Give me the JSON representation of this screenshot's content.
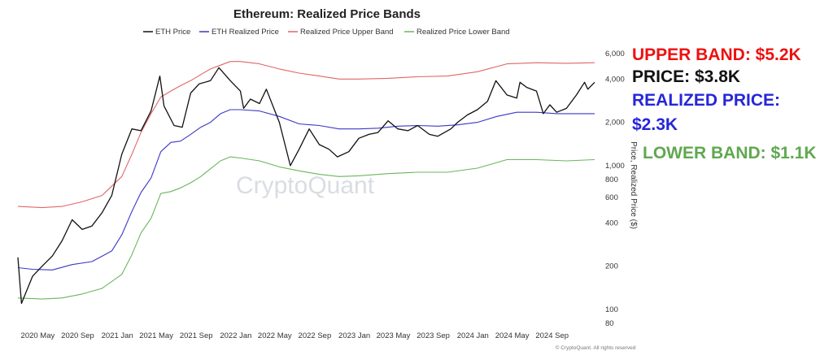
{
  "chart_data": {
    "type": "line",
    "title": "Ethereum: Realized Price Bands",
    "ylabel": "Price, Realized Price ($)",
    "yscale": "log",
    "ylim": [
      80,
      6500
    ],
    "xlim": [
      "2020-03-01",
      "2025-01-15"
    ],
    "grid": false,
    "legend_position": "top-center",
    "y_ticks": [
      {
        "v": 6000,
        "label": "6,000"
      },
      {
        "v": 4000,
        "label": "4,000"
      },
      {
        "v": 2000,
        "label": "2,000"
      },
      {
        "v": 1000,
        "label": "1,000"
      },
      {
        "v": 800,
        "label": "800"
      },
      {
        "v": 600,
        "label": "600"
      },
      {
        "v": 400,
        "label": "400"
      },
      {
        "v": 200,
        "label": "200"
      },
      {
        "v": 100,
        "label": "100"
      },
      {
        "v": 80,
        "label": "80"
      }
    ],
    "x_ticks": [
      {
        "d": "2020-05-01",
        "label": "2020 May"
      },
      {
        "d": "2020-09-01",
        "label": "2020 Sep"
      },
      {
        "d": "2021-01-01",
        "label": "2021 Jan"
      },
      {
        "d": "2021-05-01",
        "label": "2021 May"
      },
      {
        "d": "2021-09-01",
        "label": "2021 Sep"
      },
      {
        "d": "2022-01-01",
        "label": "2022 Jan"
      },
      {
        "d": "2022-05-01",
        "label": "2022 May"
      },
      {
        "d": "2022-09-01",
        "label": "2022 Sep"
      },
      {
        "d": "2023-01-01",
        "label": "2023 Jan"
      },
      {
        "d": "2023-05-01",
        "label": "2023 May"
      },
      {
        "d": "2023-09-01",
        "label": "2023 Sep"
      },
      {
        "d": "2024-01-01",
        "label": "2024 Jan"
      },
      {
        "d": "2024-05-01",
        "label": "2024 May"
      },
      {
        "d": "2024-09-01",
        "label": "2024 Sep"
      }
    ],
    "series": [
      {
        "name": "ETH Price",
        "color": "#111111",
        "points": [
          [
            "2020-03-01",
            230
          ],
          [
            "2020-03-12",
            110
          ],
          [
            "2020-04-15",
            170
          ],
          [
            "2020-05-15",
            200
          ],
          [
            "2020-06-15",
            235
          ],
          [
            "2020-07-15",
            300
          ],
          [
            "2020-08-15",
            420
          ],
          [
            "2020-09-15",
            360
          ],
          [
            "2020-10-15",
            380
          ],
          [
            "2020-11-15",
            470
          ],
          [
            "2020-12-15",
            620
          ],
          [
            "2021-01-15",
            1200
          ],
          [
            "2021-02-15",
            1800
          ],
          [
            "2021-03-15",
            1750
          ],
          [
            "2021-04-15",
            2400
          ],
          [
            "2021-05-12",
            4200
          ],
          [
            "2021-05-25",
            2600
          ],
          [
            "2021-06-25",
            1900
          ],
          [
            "2021-07-20",
            1850
          ],
          [
            "2021-08-15",
            3200
          ],
          [
            "2021-09-10",
            3700
          ],
          [
            "2021-10-15",
            3900
          ],
          [
            "2021-11-10",
            4800
          ],
          [
            "2021-12-15",
            3900
          ],
          [
            "2022-01-15",
            3300
          ],
          [
            "2022-01-25",
            2500
          ],
          [
            "2022-02-15",
            2900
          ],
          [
            "2022-03-15",
            2700
          ],
          [
            "2022-04-05",
            3400
          ],
          [
            "2022-05-15",
            2000
          ],
          [
            "2022-06-18",
            1000
          ],
          [
            "2022-07-15",
            1300
          ],
          [
            "2022-08-15",
            1800
          ],
          [
            "2022-09-15",
            1400
          ],
          [
            "2022-10-15",
            1300
          ],
          [
            "2022-11-10",
            1150
          ],
          [
            "2022-12-15",
            1250
          ],
          [
            "2023-01-15",
            1550
          ],
          [
            "2023-02-15",
            1650
          ],
          [
            "2023-03-15",
            1700
          ],
          [
            "2023-04-15",
            2050
          ],
          [
            "2023-05-15",
            1800
          ],
          [
            "2023-06-15",
            1750
          ],
          [
            "2023-07-15",
            1900
          ],
          [
            "2023-08-20",
            1650
          ],
          [
            "2023-09-15",
            1600
          ],
          [
            "2023-10-25",
            1800
          ],
          [
            "2023-11-15",
            2000
          ],
          [
            "2023-12-15",
            2250
          ],
          [
            "2024-01-15",
            2450
          ],
          [
            "2024-02-15",
            2800
          ],
          [
            "2024-03-12",
            3900
          ],
          [
            "2024-04-15",
            3100
          ],
          [
            "2024-05-15",
            2950
          ],
          [
            "2024-05-25",
            3800
          ],
          [
            "2024-06-15",
            3500
          ],
          [
            "2024-07-15",
            3300
          ],
          [
            "2024-08-05",
            2300
          ],
          [
            "2024-08-25",
            2650
          ],
          [
            "2024-09-15",
            2350
          ],
          [
            "2024-10-15",
            2500
          ],
          [
            "2024-11-15",
            3100
          ],
          [
            "2024-12-10",
            3800
          ],
          [
            "2024-12-20",
            3400
          ],
          [
            "2025-01-10",
            3800
          ]
        ]
      },
      {
        "name": "ETH Realized Price",
        "color": "#3b37c6",
        "points": [
          [
            "2020-03-01",
            195
          ],
          [
            "2020-04-15",
            190
          ],
          [
            "2020-06-15",
            188
          ],
          [
            "2020-08-15",
            205
          ],
          [
            "2020-10-15",
            215
          ],
          [
            "2020-12-15",
            255
          ],
          [
            "2021-01-15",
            330
          ],
          [
            "2021-02-15",
            480
          ],
          [
            "2021-03-15",
            650
          ],
          [
            "2021-04-15",
            820
          ],
          [
            "2021-05-15",
            1250
          ],
          [
            "2021-06-15",
            1450
          ],
          [
            "2021-07-15",
            1480
          ],
          [
            "2021-08-15",
            1650
          ],
          [
            "2021-09-15",
            1850
          ],
          [
            "2021-10-15",
            2000
          ],
          [
            "2021-11-15",
            2300
          ],
          [
            "2021-12-15",
            2450
          ],
          [
            "2022-01-15",
            2450
          ],
          [
            "2022-03-15",
            2400
          ],
          [
            "2022-05-15",
            2200
          ],
          [
            "2022-07-15",
            1950
          ],
          [
            "2022-09-15",
            1900
          ],
          [
            "2022-11-15",
            1800
          ],
          [
            "2023-01-15",
            1800
          ],
          [
            "2023-03-15",
            1820
          ],
          [
            "2023-05-15",
            1880
          ],
          [
            "2023-07-15",
            1900
          ],
          [
            "2023-09-15",
            1880
          ],
          [
            "2023-11-15",
            1920
          ],
          [
            "2024-01-15",
            2000
          ],
          [
            "2024-03-15",
            2200
          ],
          [
            "2024-05-15",
            2350
          ],
          [
            "2024-07-15",
            2350
          ],
          [
            "2024-09-15",
            2300
          ],
          [
            "2024-11-15",
            2300
          ],
          [
            "2025-01-10",
            2300
          ]
        ]
      },
      {
        "name": "Realized Price Upper Band",
        "color": "#e06666",
        "points": [
          [
            "2020-03-01",
            520
          ],
          [
            "2020-05-15",
            510
          ],
          [
            "2020-07-15",
            520
          ],
          [
            "2020-09-15",
            560
          ],
          [
            "2020-11-15",
            620
          ],
          [
            "2021-01-15",
            840
          ],
          [
            "2021-02-15",
            1200
          ],
          [
            "2021-03-15",
            1700
          ],
          [
            "2021-04-15",
            2300
          ],
          [
            "2021-05-15",
            3000
          ],
          [
            "2021-06-15",
            3300
          ],
          [
            "2021-07-15",
            3600
          ],
          [
            "2021-08-15",
            3900
          ],
          [
            "2021-09-15",
            4300
          ],
          [
            "2021-10-15",
            4700
          ],
          [
            "2021-11-15",
            5000
          ],
          [
            "2021-12-15",
            5300
          ],
          [
            "2022-01-15",
            5300
          ],
          [
            "2022-03-15",
            5100
          ],
          [
            "2022-05-15",
            4700
          ],
          [
            "2022-07-15",
            4400
          ],
          [
            "2022-09-15",
            4200
          ],
          [
            "2022-11-15",
            4000
          ],
          [
            "2023-01-15",
            4000
          ],
          [
            "2023-04-15",
            4050
          ],
          [
            "2023-07-15",
            4150
          ],
          [
            "2023-10-15",
            4200
          ],
          [
            "2024-01-15",
            4500
          ],
          [
            "2024-04-15",
            5100
          ],
          [
            "2024-07-15",
            5200
          ],
          [
            "2024-10-15",
            5150
          ],
          [
            "2025-01-10",
            5200
          ]
        ]
      },
      {
        "name": "Realized Price Lower Band",
        "color": "#6ab65c",
        "points": [
          [
            "2020-03-01",
            120
          ],
          [
            "2020-05-15",
            118
          ],
          [
            "2020-07-15",
            120
          ],
          [
            "2020-09-15",
            128
          ],
          [
            "2020-11-15",
            140
          ],
          [
            "2021-01-15",
            175
          ],
          [
            "2021-02-15",
            240
          ],
          [
            "2021-03-15",
            340
          ],
          [
            "2021-04-15",
            430
          ],
          [
            "2021-05-15",
            640
          ],
          [
            "2021-06-15",
            660
          ],
          [
            "2021-07-15",
            700
          ],
          [
            "2021-08-15",
            760
          ],
          [
            "2021-09-15",
            840
          ],
          [
            "2021-10-15",
            950
          ],
          [
            "2021-11-15",
            1080
          ],
          [
            "2021-12-15",
            1150
          ],
          [
            "2022-01-15",
            1130
          ],
          [
            "2022-03-15",
            1080
          ],
          [
            "2022-05-15",
            980
          ],
          [
            "2022-07-15",
            920
          ],
          [
            "2022-09-15",
            870
          ],
          [
            "2022-11-15",
            840
          ],
          [
            "2023-01-15",
            850
          ],
          [
            "2023-04-15",
            880
          ],
          [
            "2023-07-15",
            900
          ],
          [
            "2023-10-15",
            900
          ],
          [
            "2024-01-15",
            960
          ],
          [
            "2024-04-15",
            1100
          ],
          [
            "2024-07-15",
            1100
          ],
          [
            "2024-10-15",
            1080
          ],
          [
            "2025-01-10",
            1100
          ]
        ]
      }
    ]
  },
  "watermark": "CryptoQuant",
  "credit": "© CryptoQuant. All rights reserved",
  "annotations": [
    {
      "id": "upper",
      "lines": [
        "UPPER BAND: $5.2K"
      ],
      "color": "#ee1111"
    },
    {
      "id": "price",
      "lines": [
        "PRICE: $3.8K"
      ],
      "color": "#111111"
    },
    {
      "id": "realized",
      "lines": [
        "REALIZED PRICE:",
        "$2.3K"
      ],
      "color": "#2626d9"
    },
    {
      "id": "lower",
      "lines": [
        "LOWER BAND: $1.1K"
      ],
      "color": "#5fa84f"
    }
  ]
}
